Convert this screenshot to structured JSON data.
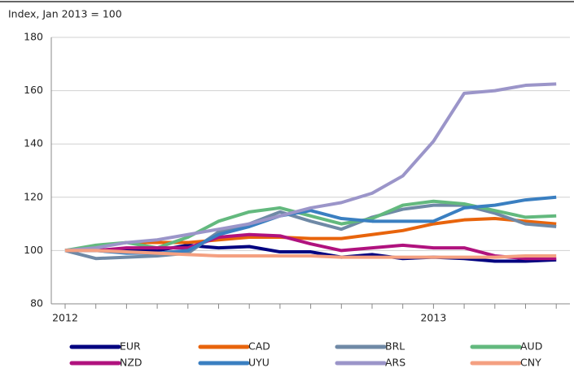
{
  "chart_data": {
    "type": "line",
    "ylabel": "Index, Jan 2013 = 100",
    "categories": [
      "2012",
      null,
      null,
      null,
      null,
      null,
      null,
      null,
      null,
      null,
      null,
      null,
      "2013",
      null,
      null,
      null,
      null
    ],
    "ylim": [
      80,
      180
    ],
    "yticks": [
      80,
      100,
      120,
      140,
      160,
      180
    ],
    "grid": true,
    "series": [
      {
        "name": "EUR",
        "color": "#000080",
        "values": [
          100,
          100,
          100,
          100,
          102,
          101,
          101.5,
          99.5,
          99.5,
          97.5,
          98.5,
          97,
          97.5,
          97,
          96,
          96,
          96.5
        ]
      },
      {
        "name": "CAD",
        "color": "#e8640c",
        "values": [
          100,
          101.5,
          103,
          103,
          103,
          104,
          105,
          105,
          104.5,
          104.5,
          106,
          107.5,
          110,
          111.5,
          112,
          111,
          110
        ]
      },
      {
        "name": "BRL",
        "color": "#6f89a6",
        "values": [
          100,
          97,
          97.5,
          98,
          99,
          107,
          110,
          114.5,
          111,
          108,
          112.5,
          115.5,
          117,
          117,
          114,
          110,
          109
        ]
      },
      {
        "name": "AUD",
        "color": "#63b97e",
        "values": [
          100,
          102,
          103,
          101,
          105,
          111,
          114.5,
          116,
          113,
          110,
          112,
          117,
          118.5,
          117.5,
          115,
          112.5,
          113
        ]
      },
      {
        "name": "NZD",
        "color": "#b0127e",
        "values": [
          100,
          100,
          101,
          101,
          101,
          105,
          106,
          105.5,
          102.5,
          100,
          101,
          102,
          101,
          101,
          98,
          97,
          97
        ]
      },
      {
        "name": "UYU",
        "color": "#3a7fc1",
        "values": [
          100,
          100,
          99,
          99,
          100,
          106,
          109,
          113,
          115,
          112,
          111,
          111,
          111,
          116,
          117,
          119,
          120
        ]
      },
      {
        "name": "ARS",
        "color": "#9b95c9",
        "values": [
          100,
          101,
          103,
          104,
          106,
          108,
          110,
          113,
          116,
          118,
          121.5,
          128,
          141,
          159,
          160,
          162,
          162.5
        ]
      },
      {
        "name": "CNY",
        "color": "#f4a081",
        "values": [
          100,
          100,
          99.5,
          99,
          98.5,
          98,
          98,
          98,
          98,
          97.5,
          97.5,
          97.5,
          97.5,
          97.5,
          97.5,
          98,
          98
        ]
      }
    ]
  }
}
